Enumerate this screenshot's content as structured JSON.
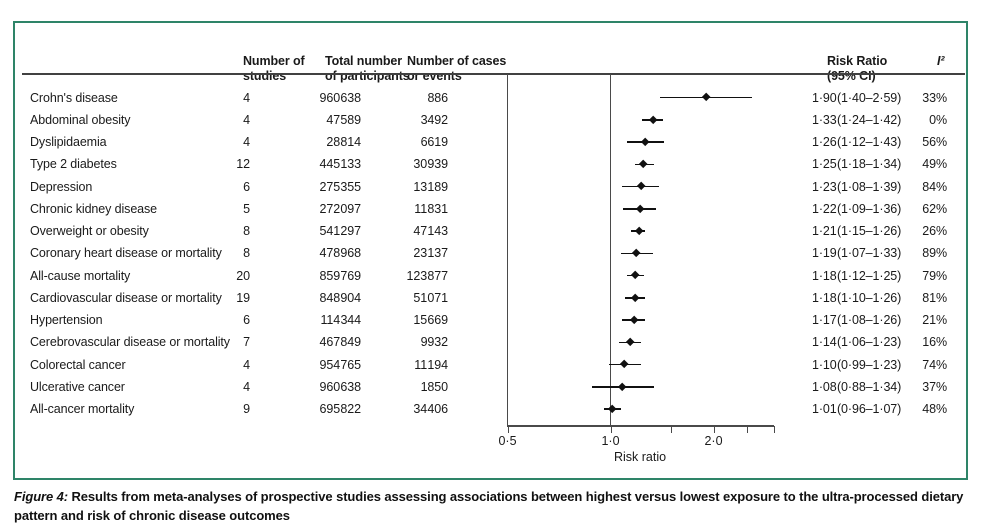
{
  "colors": {
    "frame_green": "#2e8468",
    "text": "#1a1a1a",
    "line_gray": "#4a4a4a",
    "marker_black": "#111111"
  },
  "table": {
    "headers": {
      "studies": "Number of studies",
      "participants": "Total number of participants",
      "cases": "Number of cases or events",
      "risk_ratio": "Risk Ratio (95% CI)",
      "i2": "I²"
    },
    "rows": [
      {
        "label": "Crohn's disease",
        "studies": "4",
        "participants": "960 638",
        "cases": "886",
        "rr_text": "1·90 (1·40–2·59)",
        "i2": "33%",
        "rr": 1.9,
        "lo": 1.4,
        "hi": 2.59
      },
      {
        "label": "Abdominal obesity",
        "studies": "4",
        "participants": "47 589",
        "cases": "3492",
        "rr_text": "1·33 (1·24–1·42)",
        "i2": "0%",
        "rr": 1.33,
        "lo": 1.24,
        "hi": 1.42
      },
      {
        "label": "Dyslipidaemia",
        "studies": "4",
        "participants": "28 814",
        "cases": "6619",
        "rr_text": "1·26 (1·12–1·43)",
        "i2": "56%",
        "rr": 1.26,
        "lo": 1.12,
        "hi": 1.43
      },
      {
        "label": "Type 2 diabetes",
        "studies": "12",
        "participants": "445 133",
        "cases": "30 939",
        "rr_text": "1·25 (1·18–1·34)",
        "i2": "49%",
        "rr": 1.25,
        "lo": 1.18,
        "hi": 1.34
      },
      {
        "label": "Depression",
        "studies": "6",
        "participants": "275 355",
        "cases": "13 189",
        "rr_text": "1·23 (1·08–1·39)",
        "i2": "84%",
        "rr": 1.23,
        "lo": 1.08,
        "hi": 1.39
      },
      {
        "label": "Chronic kidney disease",
        "studies": "5",
        "participants": "272 097",
        "cases": "11 831",
        "rr_text": "1·22 (1·09–1·36)",
        "i2": "62%",
        "rr": 1.22,
        "lo": 1.09,
        "hi": 1.36
      },
      {
        "label": "Overweight or obesity",
        "studies": "8",
        "participants": "541 297",
        "cases": "47 143",
        "rr_text": "1·21 (1·15–1·26)",
        "i2": "26%",
        "rr": 1.21,
        "lo": 1.15,
        "hi": 1.26
      },
      {
        "label": "Coronary heart disease or mortality",
        "studies": "8",
        "participants": "478 968",
        "cases": "23 137",
        "rr_text": "1·19 (1·07–1·33)",
        "i2": "89%",
        "rr": 1.19,
        "lo": 1.07,
        "hi": 1.33
      },
      {
        "label": "All-cause mortality",
        "studies": "20",
        "participants": "859 769",
        "cases": "123 877",
        "rr_text": "1·18 (1·12–1·25)",
        "i2": "79%",
        "rr": 1.18,
        "lo": 1.12,
        "hi": 1.25
      },
      {
        "label": "Cardiovascular disease or mortality",
        "studies": "19",
        "participants": "848 904",
        "cases": "51 071",
        "rr_text": "1·18 (1·10–1·26)",
        "i2": "81%",
        "rr": 1.18,
        "lo": 1.1,
        "hi": 1.26
      },
      {
        "label": "Hypertension",
        "studies": "6",
        "participants": "114 344",
        "cases": "15 669",
        "rr_text": "1·17 (1·08–1·26)",
        "i2": "21%",
        "rr": 1.17,
        "lo": 1.08,
        "hi": 1.26
      },
      {
        "label": "Cerebrovascular disease or mortality",
        "studies": "7",
        "participants": "467 849",
        "cases": "9932",
        "rr_text": "1·14 (1·06–1·23)",
        "i2": "16%",
        "rr": 1.14,
        "lo": 1.06,
        "hi": 1.23
      },
      {
        "label": "Colorectal cancer",
        "studies": "4",
        "participants": "954 765",
        "cases": "11 194",
        "rr_text": "1·10 (0·99–1·23)",
        "i2": "74%",
        "rr": 1.1,
        "lo": 0.99,
        "hi": 1.23
      },
      {
        "label": "Ulcerative cancer",
        "studies": "4",
        "participants": "960 638",
        "cases": "1850",
        "rr_text": "1·08 (0·88–1·34)",
        "i2": "37%",
        "rr": 1.08,
        "lo": 0.88,
        "hi": 1.34
      },
      {
        "label": "All-cancer mortality",
        "studies": "9",
        "participants": "695 822",
        "cases": "34 406",
        "rr_text": "1·01 (0·96–1·07)",
        "i2": "48%",
        "rr": 1.01,
        "lo": 0.96,
        "hi": 1.07
      }
    ]
  },
  "chart_data": {
    "type": "scatter",
    "subtype": "forest-plot",
    "xlabel": "Risk ratio",
    "x_scale": "log",
    "xlim": [
      0.5,
      3.0
    ],
    "reference_line_x": 1.0,
    "x_ticks": [
      {
        "v": 0.5,
        "label": "0·5"
      },
      {
        "v": 1.0,
        "label": "1·0"
      },
      {
        "v": 1.5,
        "label": ""
      },
      {
        "v": 2.0,
        "label": "2·0"
      },
      {
        "v": 2.5,
        "label": ""
      },
      {
        "v": 3.0,
        "label": ""
      }
    ],
    "categories": [
      "Crohn's disease",
      "Abdominal obesity",
      "Dyslipidaemia",
      "Type 2 diabetes",
      "Depression",
      "Chronic kidney disease",
      "Overweight or obesity",
      "Coronary heart disease or mortality",
      "All-cause mortality",
      "Cardiovascular disease or mortality",
      "Hypertension",
      "Cerebrovascular disease or mortality",
      "Colorectal cancer",
      "Ulcerative cancer",
      "All-cancer mortality"
    ],
    "series": [
      {
        "name": "risk_ratio",
        "values": [
          1.9,
          1.33,
          1.26,
          1.25,
          1.23,
          1.22,
          1.21,
          1.19,
          1.18,
          1.18,
          1.17,
          1.14,
          1.1,
          1.08,
          1.01
        ]
      },
      {
        "name": "ci_lower",
        "values": [
          1.4,
          1.24,
          1.12,
          1.18,
          1.08,
          1.09,
          1.15,
          1.07,
          1.12,
          1.1,
          1.08,
          1.06,
          0.99,
          0.88,
          0.96
        ]
      },
      {
        "name": "ci_upper",
        "values": [
          2.59,
          1.42,
          1.43,
          1.34,
          1.39,
          1.36,
          1.26,
          1.33,
          1.25,
          1.26,
          1.26,
          1.23,
          1.23,
          1.34,
          1.07
        ]
      }
    ]
  },
  "axis": {
    "title": "Risk ratio"
  },
  "caption": {
    "figure_label": "Figure 4:",
    "text": " Results from meta-analyses of prospective studies assessing associations between highest versus lowest exposure to the ultra-processed dietary pattern and risk of chronic disease outcomes"
  }
}
